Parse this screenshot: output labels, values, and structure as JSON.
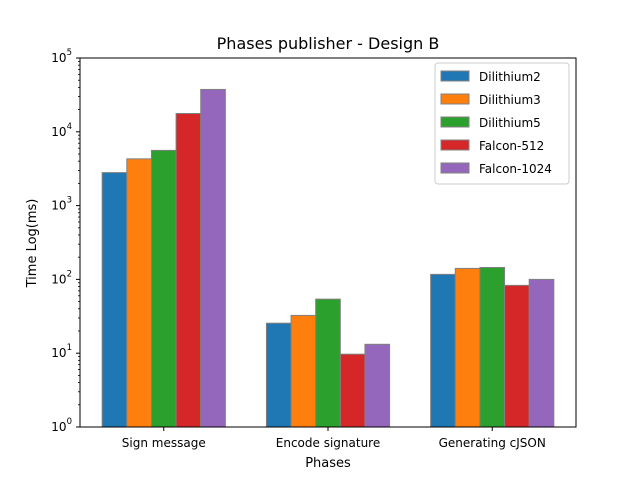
{
  "chart_data": {
    "type": "bar",
    "title": "Phases publisher - Design B",
    "xlabel": "Phases",
    "ylabel": "Time Log(ms)",
    "yscale": "log",
    "ylim": [
      1,
      100000
    ],
    "grid": false,
    "legend_position": "top-right",
    "categories": [
      "Sign message",
      "Encode signature",
      "Generating cJSON"
    ],
    "y_ticks": [
      {
        "value": 1,
        "base": "10",
        "exp": "0"
      },
      {
        "value": 10,
        "base": "10",
        "exp": "1"
      },
      {
        "value": 100,
        "base": "10",
        "exp": "2"
      },
      {
        "value": 1000,
        "base": "10",
        "exp": "3"
      },
      {
        "value": 10000,
        "base": "10",
        "exp": "4"
      },
      {
        "value": 100000,
        "base": "10",
        "exp": "5"
      }
    ],
    "series": [
      {
        "name": "Dilithium2",
        "color": "#1f77b4",
        "values": [
          2800,
          25.5,
          117
        ]
      },
      {
        "name": "Dilithium3",
        "color": "#ff7f0e",
        "values": [
          4300,
          32.5,
          141
        ]
      },
      {
        "name": "Dilithium5",
        "color": "#2ca02c",
        "values": [
          5600,
          54,
          145
        ]
      },
      {
        "name": "Falcon-512",
        "color": "#d62728",
        "values": [
          17700,
          9.7,
          83
        ]
      },
      {
        "name": "Falcon-1024",
        "color": "#9467bd",
        "values": [
          37500,
          13.2,
          100
        ]
      }
    ]
  }
}
